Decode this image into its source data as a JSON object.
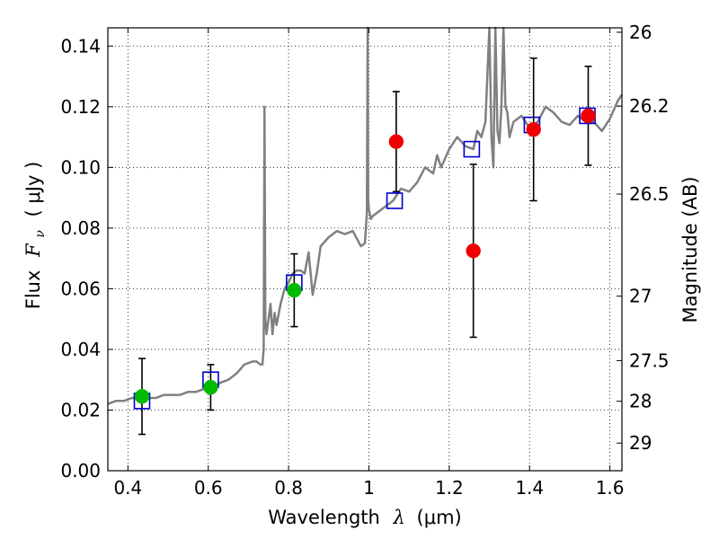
{
  "chart_data": {
    "type": "scatter",
    "xlabel_text": "Wavelength",
    "xlabel_symbol": "λ",
    "xlabel_unit": "(μm)",
    "ylabel_text": "Flux",
    "ylabel_symbol": "F",
    "ylabel_subscript": "ν",
    "ylabel_unit": "( μJy )",
    "y2label": "Magnitude (AB)",
    "xlim": [
      0.35,
      1.63
    ],
    "ylim": [
      0.0,
      0.146
    ],
    "grid": true,
    "x_ticks": [
      {
        "value": 0.4,
        "label": "0.4"
      },
      {
        "value": 0.6,
        "label": "0.6"
      },
      {
        "value": 0.8,
        "label": "0.8"
      },
      {
        "value": 1.0,
        "label": "1"
      },
      {
        "value": 1.2,
        "label": "1.2"
      },
      {
        "value": 1.4,
        "label": "1.4"
      },
      {
        "value": 1.6,
        "label": "1.6"
      }
    ],
    "y_ticks": [
      {
        "value": 0.0,
        "label": "0.00"
      },
      {
        "value": 0.02,
        "label": "0.02"
      },
      {
        "value": 0.04,
        "label": "0.04"
      },
      {
        "value": 0.06,
        "label": "0.06"
      },
      {
        "value": 0.08,
        "label": "0.08"
      },
      {
        "value": 0.1,
        "label": "0.10"
      },
      {
        "value": 0.12,
        "label": "0.12"
      },
      {
        "value": 0.14,
        "label": "0.14"
      }
    ],
    "y2_ticks": [
      {
        "mag": 26.0,
        "label": "26"
      },
      {
        "mag": 26.2,
        "label": "26.2"
      },
      {
        "mag": 26.5,
        "label": "26.5"
      },
      {
        "mag": 27.0,
        "label": "27"
      },
      {
        "mag": 27.5,
        "label": "27.5"
      },
      {
        "mag": 28.0,
        "label": "28"
      },
      {
        "mag": 29.0,
        "label": "29"
      }
    ],
    "series": [
      {
        "name": "model-spectrum",
        "kind": "line",
        "color": "#808080",
        "x": [
          0.35,
          0.37,
          0.39,
          0.41,
          0.43,
          0.45,
          0.47,
          0.49,
          0.51,
          0.53,
          0.55,
          0.57,
          0.59,
          0.61,
          0.63,
          0.65,
          0.67,
          0.69,
          0.71,
          0.72,
          0.73,
          0.735,
          0.738,
          0.74,
          0.742,
          0.745,
          0.75,
          0.755,
          0.76,
          0.765,
          0.77,
          0.78,
          0.79,
          0.8,
          0.81,
          0.82,
          0.83,
          0.84,
          0.85,
          0.86,
          0.87,
          0.88,
          0.9,
          0.92,
          0.94,
          0.96,
          0.98,
          0.99,
          0.995,
          0.997,
          0.998,
          0.999,
          1.0,
          1.005,
          1.01,
          1.02,
          1.04,
          1.06,
          1.08,
          1.1,
          1.12,
          1.14,
          1.16,
          1.17,
          1.18,
          1.2,
          1.22,
          1.24,
          1.26,
          1.27,
          1.28,
          1.29,
          1.3,
          1.305,
          1.31,
          1.315,
          1.32,
          1.325,
          1.33,
          1.335,
          1.34,
          1.345,
          1.35,
          1.36,
          1.38,
          1.4,
          1.42,
          1.44,
          1.46,
          1.48,
          1.5,
          1.52,
          1.54,
          1.56,
          1.58,
          1.6,
          1.62,
          1.63
        ],
        "y": [
          0.022,
          0.023,
          0.023,
          0.024,
          0.024,
          0.024,
          0.024,
          0.025,
          0.025,
          0.025,
          0.026,
          0.026,
          0.027,
          0.027,
          0.029,
          0.03,
          0.032,
          0.035,
          0.036,
          0.036,
          0.035,
          0.035,
          0.04,
          0.12,
          0.05,
          0.045,
          0.05,
          0.055,
          0.045,
          0.052,
          0.048,
          0.055,
          0.06,
          0.062,
          0.065,
          0.066,
          0.066,
          0.065,
          0.072,
          0.058,
          0.065,
          0.074,
          0.077,
          0.079,
          0.078,
          0.079,
          0.074,
          0.075,
          0.085,
          0.148,
          0.09,
          0.088,
          0.086,
          0.083,
          0.084,
          0.085,
          0.087,
          0.089,
          0.093,
          0.092,
          0.095,
          0.1,
          0.098,
          0.104,
          0.1,
          0.106,
          0.11,
          0.107,
          0.106,
          0.112,
          0.11,
          0.115,
          0.148,
          0.11,
          0.1,
          0.148,
          0.112,
          0.108,
          0.12,
          0.148,
          0.12,
          0.118,
          0.11,
          0.115,
          0.117,
          0.113,
          0.115,
          0.12,
          0.118,
          0.115,
          0.114,
          0.117,
          0.115,
          0.115,
          0.112,
          0.116,
          0.122,
          0.124
        ]
      },
      {
        "name": "model-photometry",
        "kind": "open-square",
        "color": "#0000cc",
        "x": [
          0.435,
          0.606,
          0.814,
          1.064,
          1.256,
          1.406,
          1.544
        ],
        "y": [
          0.023,
          0.03,
          0.062,
          0.089,
          0.106,
          0.114,
          0.117
        ]
      },
      {
        "name": "observed-optical",
        "kind": "filled-circle",
        "color": "#00bb00",
        "x": [
          0.435,
          0.606,
          0.814
        ],
        "y": [
          0.0245,
          0.0275,
          0.0595
        ],
        "yerr": [
          0.0125,
          0.0075,
          0.012
        ]
      },
      {
        "name": "observed-nir",
        "kind": "filled-circle",
        "color": "#ee0000",
        "x": [
          1.068,
          1.26,
          1.41,
          1.546
        ],
        "y": [
          0.1085,
          0.0725,
          0.1125,
          0.117
        ],
        "yerr": [
          0.0165,
          0.0285,
          0.0235,
          0.0163
        ]
      }
    ]
  }
}
